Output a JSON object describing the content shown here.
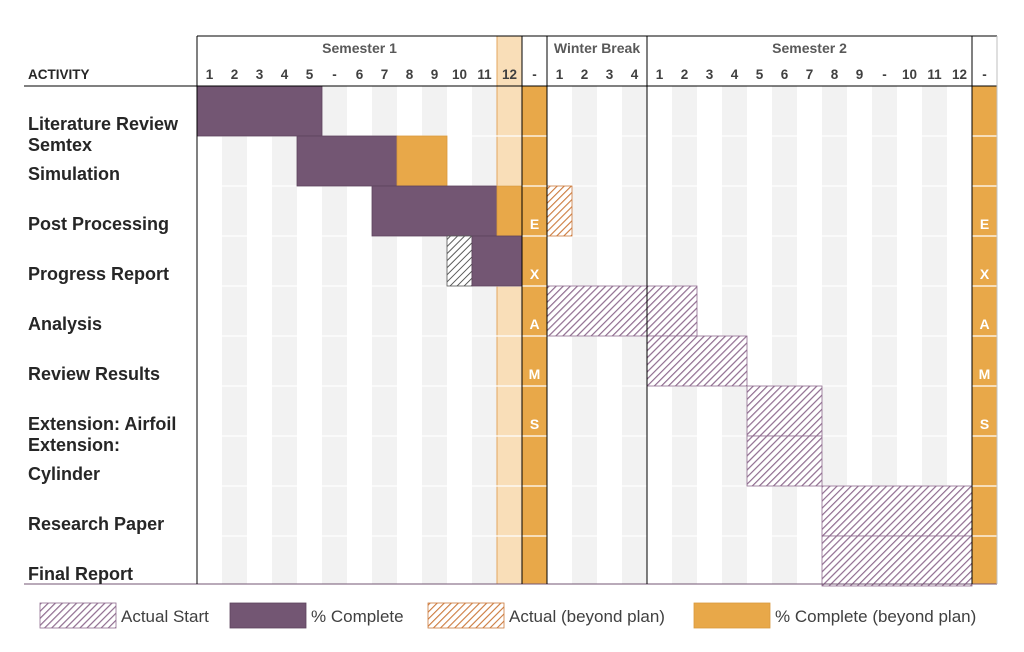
{
  "chart_data": {
    "type": "gantt",
    "activity_header": "ACTIVITY",
    "periods": [
      {
        "name": "Semester 1",
        "weeks": [
          "1",
          "2",
          "3",
          "4",
          "5",
          "-",
          "6",
          "7",
          "8",
          "9",
          "10",
          "11",
          "12"
        ]
      },
      {
        "name": "",
        "weeks": [
          "-"
        ]
      },
      {
        "name": "Winter Break",
        "weeks": [
          "1",
          "2",
          "3",
          "4"
        ]
      },
      {
        "name": "Semester 2",
        "weeks": [
          "1",
          "2",
          "3",
          "4",
          "5",
          "6",
          "7",
          "8",
          "9",
          "-",
          "10",
          "11",
          "12"
        ]
      },
      {
        "name": "",
        "weeks": [
          "-"
        ]
      }
    ],
    "activities": [
      {
        "label": "Literature Review",
        "row": 0
      },
      {
        "label": "Semtex",
        "row": 1
      },
      {
        "label": "Simulation",
        "row": 1
      },
      {
        "label": "Post Processing",
        "row": 2
      },
      {
        "label": "Progress Report",
        "row": 3
      },
      {
        "label": "Analysis",
        "row": 4
      },
      {
        "label": "Review Results",
        "row": 5
      },
      {
        "label": "Extension: Airfoil",
        "row": 6
      },
      {
        "label": "Extension:",
        "row": 7
      },
      {
        "label": "Cylinder",
        "row": 7
      },
      {
        "label": "Research Paper",
        "row": 8
      },
      {
        "label": "Final Report",
        "row": 9
      }
    ],
    "bars": [
      {
        "row": 0,
        "start": 0,
        "length": 5,
        "kind": "complete"
      },
      {
        "row": 1,
        "start": 4,
        "length": 4,
        "kind": "complete"
      },
      {
        "row": 1,
        "start": 8,
        "length": 2,
        "kind": "complete_beyond"
      },
      {
        "row": 2,
        "start": 7,
        "length": 5,
        "kind": "complete"
      },
      {
        "row": 2,
        "start": 12,
        "length": 1,
        "kind": "complete_beyond"
      },
      {
        "row": 2,
        "start": 14,
        "length": 1,
        "kind": "actual_beyond"
      },
      {
        "row": 3,
        "start": 10,
        "length": 1,
        "kind": "actual_mono"
      },
      {
        "row": 3,
        "start": 11,
        "length": 2,
        "kind": "complete"
      },
      {
        "row": 4,
        "start": 14,
        "length": 6,
        "kind": "actual_start"
      },
      {
        "row": 5,
        "start": 18,
        "length": 4,
        "kind": "actual_start"
      },
      {
        "row": 6,
        "start": 22,
        "length": 3,
        "kind": "actual_start"
      },
      {
        "row": 7,
        "start": 22,
        "length": 3,
        "kind": "actual_start"
      },
      {
        "row": 8,
        "start": 25,
        "length": 6,
        "kind": "actual_start"
      },
      {
        "row": 9,
        "start": 25,
        "length": 6,
        "kind": "actual_start"
      }
    ],
    "highlight_column": 12,
    "exam_columns": [
      13,
      31
    ],
    "exam_letters": [
      "E",
      "X",
      "A",
      "M",
      "S"
    ],
    "legend": [
      {
        "kind": "actual_start",
        "label": "Actual Start"
      },
      {
        "kind": "complete",
        "label": "% Complete"
      },
      {
        "kind": "actual_beyond",
        "label": "Actual (beyond plan)"
      },
      {
        "kind": "complete_beyond",
        "label": "% Complete (beyond plan)"
      }
    ],
    "colors": {
      "complete": "#735673",
      "complete_beyond": "#E8A849",
      "hatch_purple": "#8F6C8F",
      "hatch_orange": "#CC7A3D",
      "highlight": "#F9DEB8",
      "stripe": "#F2F2F2",
      "grid_line": "#000000"
    }
  }
}
